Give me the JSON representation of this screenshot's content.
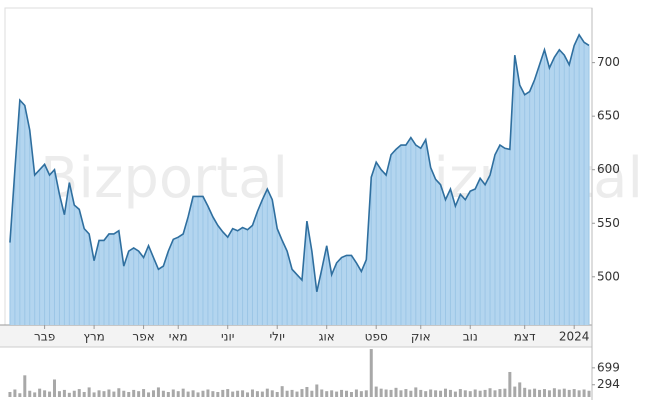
{
  "watermark": "Bizportal",
  "chart_data": [
    {
      "type": "area",
      "color": "#2f6f9f",
      "fill": "#b3d5ef",
      "xlim": [
        -1,
        117.6
      ],
      "xticks": [
        {
          "value": 7,
          "label": "פבר"
        },
        {
          "value": 17,
          "label": "מרץ"
        },
        {
          "value": 27,
          "label": "אפר"
        },
        {
          "value": 34,
          "label": "מאי"
        },
        {
          "value": 44,
          "label": "יוני"
        },
        {
          "value": 54,
          "label": "יולי"
        },
        {
          "value": 64,
          "label": "אוג"
        },
        {
          "value": 74,
          "label": "ספט"
        },
        {
          "value": 83,
          "label": "אוק"
        },
        {
          "value": 93,
          "label": "נוב"
        },
        {
          "value": 104,
          "label": "דצמ"
        },
        {
          "value": 114,
          "label": "2024"
        }
      ],
      "ylim": [
        455,
        751
      ],
      "yticks": [
        500,
        550,
        600,
        650,
        700
      ],
      "values": [
        532,
        600,
        665,
        660,
        637,
        595,
        600,
        605,
        595,
        600,
        577,
        558,
        588,
        567,
        563,
        545,
        540,
        515,
        534,
        534,
        540,
        540,
        543,
        510,
        524,
        527,
        524,
        518,
        529,
        518,
        507,
        510,
        524,
        535,
        537,
        540,
        556,
        575,
        575,
        575,
        566,
        556,
        548,
        542,
        537,
        545,
        543,
        546,
        544,
        548,
        561,
        572,
        582,
        572,
        545,
        534,
        524,
        507,
        502,
        497,
        552,
        524,
        486,
        507,
        529,
        502,
        513,
        518,
        520,
        520,
        513,
        505,
        516,
        593,
        607,
        600,
        595,
        614,
        619,
        623,
        623,
        630,
        623,
        620,
        628,
        602,
        591,
        586,
        572,
        582,
        566,
        577,
        572,
        580,
        582,
        592,
        586,
        595,
        614,
        623,
        620,
        619,
        707,
        679,
        670,
        673,
        684,
        698,
        712,
        695,
        705,
        712,
        707,
        698,
        716,
        726,
        719,
        716
      ]
    },
    {
      "type": "bar",
      "color": "#a8a8a8",
      "ylim": [
        0,
        1175
      ],
      "yticks": [
        699,
        294
      ],
      "values": [
        120,
        180,
        90,
        520,
        150,
        110,
        200,
        160,
        130,
        420,
        140,
        170,
        100,
        150,
        190,
        120,
        230,
        110,
        160,
        140,
        180,
        130,
        210,
        150,
        120,
        170,
        140,
        190,
        110,
        160,
        230,
        150,
        120,
        180,
        140,
        200,
        130,
        160,
        110,
        150,
        180,
        140,
        120,
        170,
        190,
        130,
        150,
        160,
        110,
        180,
        140,
        130,
        200,
        160,
        120,
        260,
        150,
        170,
        130,
        190,
        240,
        150,
        300,
        180,
        140,
        160,
        130,
        170,
        150,
        120,
        180,
        140,
        160,
        1150,
        250,
        200,
        180,
        170,
        220,
        160,
        190,
        150,
        230,
        170,
        140,
        180,
        160,
        150,
        200,
        170,
        130,
        190,
        160,
        140,
        180,
        150,
        170,
        210,
        160,
        190,
        200,
        600,
        250,
        350,
        220,
        180,
        200,
        170,
        190,
        160,
        210,
        180,
        200,
        170,
        190,
        160,
        180,
        150
      ]
    }
  ]
}
